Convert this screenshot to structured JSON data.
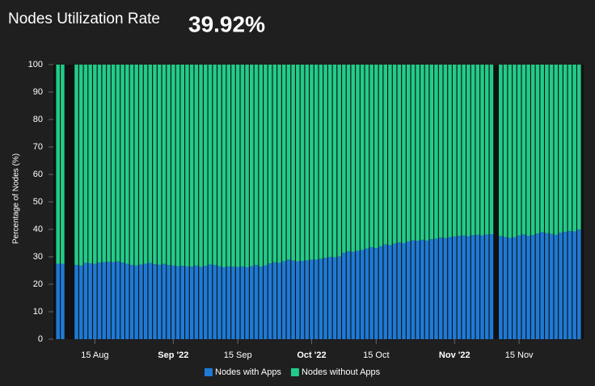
{
  "chart_data": {
    "type": "stacked-bar",
    "title": "Nodes Utilization Rate",
    "headline": "39.92%",
    "ylabel": "Percentage of Nodes (%)",
    "x": [
      "2022-08-07",
      "2022-08-08",
      "2022-08-11",
      "2022-08-12",
      "2022-08-13",
      "2022-08-14",
      "2022-08-15",
      "2022-08-16",
      "2022-08-17",
      "2022-08-18",
      "2022-08-19",
      "2022-08-20",
      "2022-08-21",
      "2022-08-22",
      "2022-08-23",
      "2022-08-24",
      "2022-08-25",
      "2022-08-26",
      "2022-08-27",
      "2022-08-28",
      "2022-08-29",
      "2022-08-30",
      "2022-08-31",
      "2022-09-01",
      "2022-09-02",
      "2022-09-03",
      "2022-09-04",
      "2022-09-05",
      "2022-09-06",
      "2022-09-07",
      "2022-09-08",
      "2022-09-09",
      "2022-09-10",
      "2022-09-11",
      "2022-09-12",
      "2022-09-13",
      "2022-09-14",
      "2022-09-15",
      "2022-09-16",
      "2022-09-17",
      "2022-09-18",
      "2022-09-19",
      "2022-09-20",
      "2022-09-21",
      "2022-09-22",
      "2022-09-23",
      "2022-09-24",
      "2022-09-25",
      "2022-09-26",
      "2022-09-27",
      "2022-09-28",
      "2022-09-29",
      "2022-09-30",
      "2022-10-01",
      "2022-10-02",
      "2022-10-03",
      "2022-10-04",
      "2022-10-05",
      "2022-10-06",
      "2022-10-07",
      "2022-10-08",
      "2022-10-09",
      "2022-10-10",
      "2022-10-11",
      "2022-10-12",
      "2022-10-13",
      "2022-10-14",
      "2022-10-15",
      "2022-10-16",
      "2022-10-17",
      "2022-10-18",
      "2022-10-19",
      "2022-10-20",
      "2022-10-21",
      "2022-10-22",
      "2022-10-23",
      "2022-10-24",
      "2022-10-25",
      "2022-10-26",
      "2022-10-27",
      "2022-10-28",
      "2022-10-29",
      "2022-10-30",
      "2022-10-31",
      "2022-11-01",
      "2022-11-02",
      "2022-11-03",
      "2022-11-04",
      "2022-11-05",
      "2022-11-06",
      "2022-11-07",
      "2022-11-08",
      "2022-11-09",
      "2022-11-11",
      "2022-11-12",
      "2022-11-13",
      "2022-11-14",
      "2022-11-15",
      "2022-11-16",
      "2022-11-17",
      "2022-11-18",
      "2022-11-19",
      "2022-11-20",
      "2022-11-21",
      "2022-11-22",
      "2022-11-23",
      "2022-11-24",
      "2022-11-25",
      "2022-11-26",
      "2022-11-27",
      "2022-11-28"
    ],
    "series": [
      {
        "name": "Nodes with Apps",
        "color": "#1e7ad6",
        "values": [
          27.5,
          27.5,
          27.0,
          26.8,
          27.8,
          27.6,
          27.5,
          27.9,
          28.0,
          28.2,
          28.1,
          28.3,
          27.9,
          27.5,
          27.0,
          26.8,
          27.2,
          27.5,
          27.8,
          27.3,
          27.1,
          27.4,
          27.0,
          26.8,
          26.6,
          26.7,
          26.5,
          26.4,
          26.8,
          26.3,
          26.7,
          27.2,
          27.0,
          26.6,
          26.2,
          26.5,
          26.4,
          26.3,
          26.5,
          26.2,
          26.6,
          27.0,
          26.4,
          26.9,
          27.6,
          28.0,
          27.8,
          28.4,
          29.0,
          28.6,
          28.3,
          28.5,
          28.7,
          28.9,
          29.0,
          29.3,
          29.6,
          30.0,
          29.8,
          30.1,
          31.5,
          32.0,
          31.8,
          32.2,
          32.5,
          33.0,
          33.5,
          33.2,
          33.8,
          34.5,
          34.2,
          34.8,
          35.2,
          35.0,
          35.6,
          36.0,
          35.8,
          36.2,
          35.9,
          36.4,
          36.6,
          37.0,
          36.8,
          37.2,
          37.4,
          37.6,
          37.8,
          37.5,
          37.9,
          38.0,
          37.8,
          38.1,
          38.2,
          37.6,
          37.2,
          36.9,
          37.1,
          37.8,
          38.2,
          37.6,
          37.9,
          38.5,
          39.0,
          38.6,
          38.3,
          38.0,
          38.8,
          39.1,
          39.4,
          39.2,
          39.92
        ]
      },
      {
        "name": "Nodes without Apps",
        "color": "#22cc88",
        "values": [
          72.5,
          72.5,
          73.0,
          73.2,
          72.2,
          72.4,
          72.5,
          72.1,
          72.0,
          71.8,
          71.9,
          71.7,
          72.1,
          72.5,
          73.0,
          73.2,
          72.8,
          72.5,
          72.2,
          72.7,
          72.9,
          72.6,
          73.0,
          73.2,
          73.4,
          73.3,
          73.5,
          73.6,
          73.2,
          73.7,
          73.3,
          72.8,
          73.0,
          73.4,
          73.8,
          73.5,
          73.6,
          73.7,
          73.5,
          73.8,
          73.4,
          73.0,
          73.6,
          73.1,
          72.4,
          72.0,
          72.2,
          71.6,
          71.0,
          71.4,
          71.7,
          71.5,
          71.3,
          71.1,
          71.0,
          70.7,
          70.4,
          70.0,
          70.2,
          69.9,
          68.5,
          68.0,
          68.2,
          67.8,
          67.5,
          67.0,
          66.5,
          66.8,
          66.2,
          65.5,
          65.8,
          65.2,
          64.8,
          65.0,
          64.4,
          64.0,
          64.2,
          63.8,
          64.1,
          63.6,
          63.4,
          63.0,
          63.2,
          62.8,
          62.6,
          62.4,
          62.2,
          62.5,
          62.1,
          62.0,
          62.2,
          61.9,
          61.8,
          62.4,
          62.8,
          63.1,
          62.9,
          62.2,
          61.8,
          62.4,
          62.1,
          61.5,
          61.0,
          61.4,
          61.7,
          62.0,
          61.2,
          60.9,
          60.6,
          60.8,
          60.08
        ]
      }
    ],
    "xlim": [
      "2022-08-06",
      "2022-11-29"
    ],
    "xticks": [
      {
        "value": "2022-08-15",
        "label": "15 Aug"
      },
      {
        "value": "2022-09-01",
        "label": "Sep '22"
      },
      {
        "value": "2022-09-15",
        "label": "15 Sep"
      },
      {
        "value": "2022-10-01",
        "label": "Oct '22"
      },
      {
        "value": "2022-10-15",
        "label": "15 Oct"
      },
      {
        "value": "2022-11-01",
        "label": "Nov '22"
      },
      {
        "value": "2022-11-15",
        "label": "15 Nov"
      }
    ],
    "ylim": [
      0,
      100
    ],
    "yticks": [
      0,
      10,
      20,
      30,
      40,
      50,
      60,
      70,
      80,
      90,
      100
    ],
    "legend": "bottom"
  }
}
